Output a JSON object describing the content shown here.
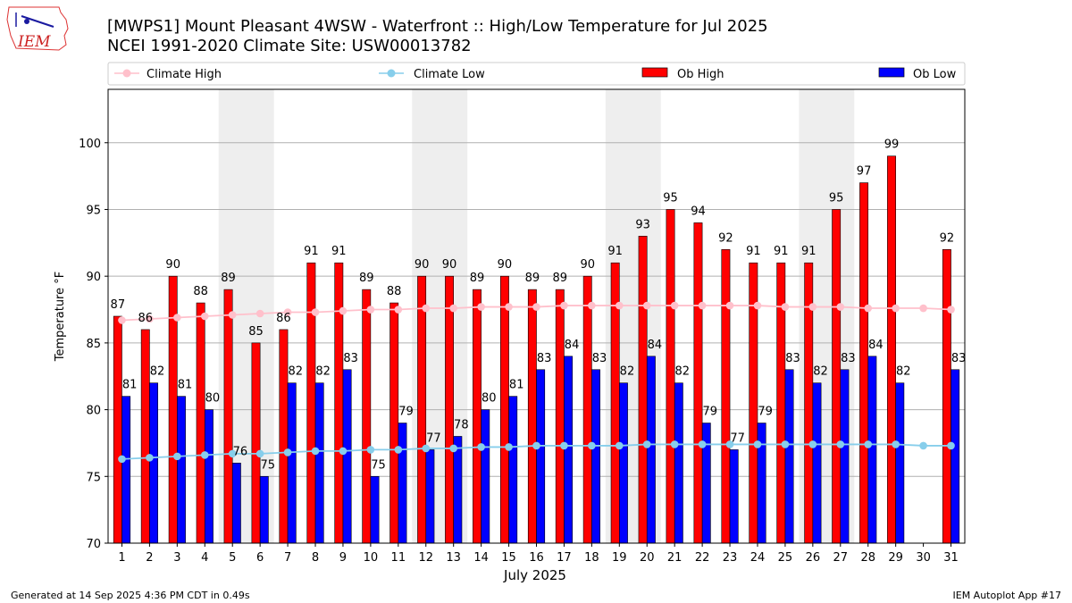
{
  "header": {
    "logo_text": "IEM",
    "title_line1": "[MWPS1] Mount Pleasant 4WSW - Waterfront :: High/Low Temperature for Jul 2025",
    "title_line2": "NCEI 1991-2020 Climate Site: USW00013782"
  },
  "footer": {
    "generated": "Generated at 14 Sep 2025 4:36 PM CDT in 0.49s",
    "app": "IEM Autoplot App #17"
  },
  "chart_data": {
    "type": "bar",
    "xlabel": "July 2025",
    "ylabel": "Temperature °F",
    "ylim": [
      70,
      104
    ],
    "yticks": [
      70,
      75,
      80,
      85,
      90,
      95,
      100
    ],
    "grid": "horizontal",
    "legend_position": "top",
    "weekend_shading_days": [
      [
        5,
        6
      ],
      [
        12,
        13
      ],
      [
        19,
        20
      ],
      [
        26,
        27
      ]
    ],
    "categories": [
      1,
      2,
      3,
      4,
      5,
      6,
      7,
      8,
      9,
      10,
      11,
      12,
      13,
      14,
      15,
      16,
      17,
      18,
      19,
      20,
      21,
      22,
      23,
      24,
      25,
      26,
      27,
      28,
      29,
      30,
      31
    ],
    "series": [
      {
        "name": "Climate High",
        "kind": "line",
        "color": "#ffc0cb",
        "values": [
          86.7,
          86.8,
          86.9,
          87.0,
          87.1,
          87.2,
          87.3,
          87.3,
          87.4,
          87.5,
          87.5,
          87.6,
          87.6,
          87.7,
          87.7,
          87.7,
          87.8,
          87.8,
          87.8,
          87.8,
          87.8,
          87.8,
          87.8,
          87.8,
          87.7,
          87.7,
          87.7,
          87.6,
          87.6,
          87.6,
          87.5
        ]
      },
      {
        "name": "Climate Low",
        "kind": "line",
        "color": "#87ceeb",
        "values": [
          76.3,
          76.4,
          76.5,
          76.6,
          76.7,
          76.7,
          76.8,
          76.9,
          76.9,
          77.0,
          77.0,
          77.1,
          77.1,
          77.2,
          77.2,
          77.3,
          77.3,
          77.3,
          77.3,
          77.4,
          77.4,
          77.4,
          77.4,
          77.4,
          77.4,
          77.4,
          77.4,
          77.4,
          77.4,
          77.3,
          77.3
        ]
      },
      {
        "name": "Ob High",
        "kind": "bar",
        "color": "#ff0000",
        "values": [
          87,
          86,
          90,
          88,
          89,
          85,
          86,
          91,
          91,
          89,
          88,
          90,
          90,
          89,
          90,
          89,
          89,
          90,
          91,
          93,
          95,
          94,
          92,
          91,
          91,
          91,
          95,
          97,
          99,
          null,
          92
        ]
      },
      {
        "name": "Ob Low",
        "kind": "bar",
        "color": "#0000ff",
        "values": [
          81,
          82,
          81,
          80,
          76,
          75,
          82,
          82,
          83,
          75,
          79,
          77,
          78,
          80,
          81,
          83,
          84,
          83,
          82,
          84,
          82,
          79,
          77,
          79,
          83,
          82,
          83,
          84,
          82,
          null,
          83
        ]
      }
    ]
  }
}
